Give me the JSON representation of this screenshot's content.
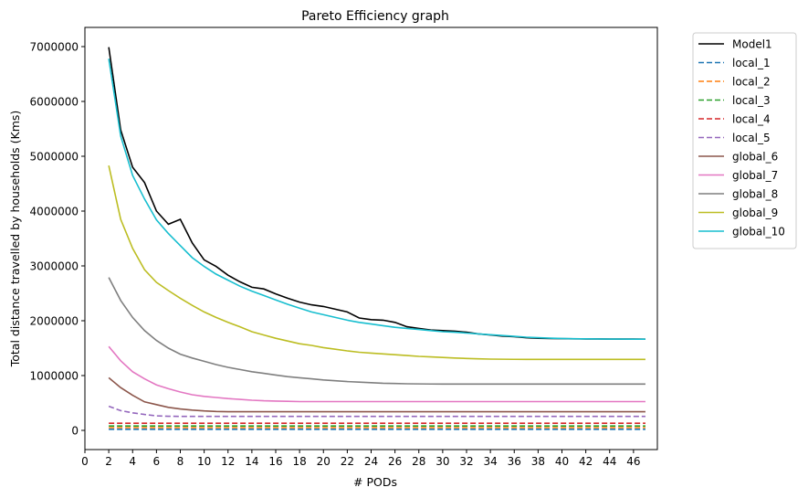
{
  "chart_data": {
    "type": "line",
    "title": "Pareto Efficiency graph",
    "xlabel": "# PODs",
    "ylabel": "Total distance travelled by households (Kms)",
    "xlim": [
      0,
      48
    ],
    "ylim": [
      -350000,
      7350000
    ],
    "xticks": [
      0,
      2,
      4,
      6,
      8,
      10,
      12,
      14,
      16,
      18,
      20,
      22,
      24,
      26,
      28,
      30,
      32,
      34,
      36,
      38,
      40,
      42,
      44,
      46
    ],
    "yticks": [
      0,
      1000000,
      2000000,
      3000000,
      4000000,
      5000000,
      6000000,
      7000000
    ],
    "x": [
      2,
      3,
      4,
      5,
      6,
      7,
      8,
      9,
      10,
      11,
      12,
      13,
      14,
      15,
      16,
      17,
      18,
      19,
      20,
      21,
      22,
      23,
      24,
      25,
      26,
      27,
      28,
      29,
      30,
      31,
      32,
      33,
      34,
      35,
      36,
      37,
      38,
      39,
      40,
      41,
      42,
      43,
      44,
      45,
      46,
      47
    ],
    "grid": false,
    "legend_position": "outside-right",
    "series": [
      {
        "name": "Model1",
        "color": "#000000",
        "dash": false,
        "values": [
          6990000,
          5480000,
          4800000,
          4520000,
          4000000,
          3760000,
          3850000,
          3420000,
          3110000,
          2990000,
          2830000,
          2710000,
          2610000,
          2580000,
          2490000,
          2410000,
          2340000,
          2290000,
          2260000,
          2210000,
          2160000,
          2050000,
          2020000,
          2010000,
          1970000,
          1890000,
          1860000,
          1830000,
          1820000,
          1810000,
          1790000,
          1760000,
          1740000,
          1720000,
          1710000,
          1690000,
          1680000,
          1675000,
          1673000,
          1670000,
          1668000,
          1667000,
          1666000,
          1665000,
          1665000,
          1664000
        ]
      },
      {
        "name": "local_1",
        "color": "#1f77b4",
        "dash": true,
        "values": [
          20000,
          20000,
          20000,
          20000,
          20000,
          20000,
          20000,
          20000,
          20000,
          20000,
          20000,
          20000,
          20000,
          20000,
          20000,
          20000,
          20000,
          20000,
          20000,
          20000,
          20000,
          20000,
          20000,
          20000,
          20000,
          20000,
          20000,
          20000,
          20000,
          20000,
          20000,
          20000,
          20000,
          20000,
          20000,
          20000,
          20000,
          20000,
          20000,
          20000,
          20000,
          20000,
          20000,
          20000,
          20000,
          20000
        ]
      },
      {
        "name": "local_2",
        "color": "#ff7f0e",
        "dash": true,
        "values": [
          50000,
          50000,
          50000,
          50000,
          50000,
          50000,
          50000,
          50000,
          50000,
          50000,
          50000,
          50000,
          50000,
          50000,
          50000,
          50000,
          50000,
          50000,
          50000,
          50000,
          50000,
          50000,
          50000,
          50000,
          50000,
          50000,
          50000,
          50000,
          50000,
          50000,
          50000,
          50000,
          50000,
          50000,
          50000,
          50000,
          50000,
          50000,
          50000,
          50000,
          50000,
          50000,
          50000,
          50000,
          50000,
          50000
        ]
      },
      {
        "name": "local_3",
        "color": "#2ca02c",
        "dash": true,
        "values": [
          80000,
          80000,
          80000,
          80000,
          80000,
          80000,
          80000,
          80000,
          80000,
          80000,
          80000,
          80000,
          80000,
          80000,
          80000,
          80000,
          80000,
          80000,
          80000,
          80000,
          80000,
          80000,
          80000,
          80000,
          80000,
          80000,
          80000,
          80000,
          80000,
          80000,
          80000,
          80000,
          80000,
          80000,
          80000,
          80000,
          80000,
          80000,
          80000,
          80000,
          80000,
          80000,
          80000,
          80000,
          80000,
          80000
        ]
      },
      {
        "name": "local_4",
        "color": "#d62728",
        "dash": true,
        "values": [
          130000,
          130000,
          130000,
          130000,
          130000,
          130000,
          130000,
          130000,
          130000,
          130000,
          130000,
          130000,
          130000,
          130000,
          130000,
          130000,
          130000,
          130000,
          130000,
          130000,
          130000,
          130000,
          130000,
          130000,
          130000,
          130000,
          130000,
          130000,
          130000,
          130000,
          130000,
          130000,
          130000,
          130000,
          130000,
          130000,
          130000,
          130000,
          130000,
          130000,
          130000,
          130000,
          130000,
          130000,
          130000,
          130000
        ]
      },
      {
        "name": "local_5",
        "color": "#9467bd",
        "dash": true,
        "values": [
          440000,
          360000,
          320000,
          290000,
          265000,
          258000,
          255000,
          255000,
          255000,
          255000,
          255000,
          255000,
          255000,
          255000,
          255000,
          255000,
          255000,
          255000,
          255000,
          255000,
          255000,
          255000,
          255000,
          255000,
          255000,
          255000,
          255000,
          255000,
          255000,
          255000,
          255000,
          255000,
          255000,
          255000,
          255000,
          255000,
          255000,
          255000,
          255000,
          255000,
          255000,
          255000,
          255000,
          255000,
          255000,
          255000
        ]
      },
      {
        "name": "global_6",
        "color": "#8c564b",
        "dash": false,
        "values": [
          960000,
          780000,
          640000,
          520000,
          470000,
          420000,
          390000,
          370000,
          355000,
          345000,
          340000,
          340000,
          340000,
          340000,
          340000,
          340000,
          340000,
          340000,
          340000,
          340000,
          340000,
          340000,
          340000,
          340000,
          340000,
          340000,
          340000,
          340000,
          340000,
          340000,
          340000,
          340000,
          340000,
          340000,
          340000,
          340000,
          340000,
          340000,
          340000,
          340000,
          340000,
          340000,
          340000,
          340000,
          340000,
          340000
        ]
      },
      {
        "name": "global_7",
        "color": "#e377c2",
        "dash": false,
        "values": [
          1530000,
          1270000,
          1070000,
          940000,
          830000,
          760000,
          700000,
          650000,
          620000,
          600000,
          580000,
          565000,
          550000,
          540000,
          535000,
          530000,
          525000,
          525000,
          525000,
          525000,
          525000,
          525000,
          525000,
          525000,
          525000,
          525000,
          525000,
          525000,
          525000,
          525000,
          525000,
          525000,
          525000,
          525000,
          525000,
          525000,
          525000,
          525000,
          525000,
          525000,
          525000,
          525000,
          525000,
          525000,
          525000,
          525000
        ]
      },
      {
        "name": "global_8",
        "color": "#7f7f7f",
        "dash": false,
        "values": [
          2790000,
          2370000,
          2060000,
          1820000,
          1640000,
          1500000,
          1390000,
          1320000,
          1260000,
          1200000,
          1150000,
          1110000,
          1070000,
          1040000,
          1010000,
          980000,
          960000,
          940000,
          920000,
          905000,
          890000,
          880000,
          870000,
          860000,
          855000,
          850000,
          848000,
          846000,
          845000,
          845000,
          845000,
          845000,
          845000,
          845000,
          845000,
          845000,
          845000,
          845000,
          845000,
          845000,
          845000,
          845000,
          845000,
          845000,
          845000,
          845000
        ]
      },
      {
        "name": "global_9",
        "color": "#bcbd22",
        "dash": false,
        "values": [
          4830000,
          3850000,
          3320000,
          2930000,
          2700000,
          2550000,
          2410000,
          2280000,
          2160000,
          2060000,
          1970000,
          1890000,
          1800000,
          1740000,
          1680000,
          1630000,
          1580000,
          1550000,
          1510000,
          1480000,
          1450000,
          1425000,
          1410000,
          1395000,
          1380000,
          1365000,
          1350000,
          1340000,
          1330000,
          1320000,
          1312000,
          1305000,
          1300000,
          1298000,
          1296000,
          1295000,
          1295000,
          1295000,
          1295000,
          1295000,
          1295000,
          1295000,
          1295000,
          1295000,
          1295000,
          1295000
        ]
      },
      {
        "name": "global_10",
        "color": "#17becf",
        "dash": false,
        "values": [
          6780000,
          5370000,
          4650000,
          4220000,
          3840000,
          3590000,
          3370000,
          3150000,
          2990000,
          2850000,
          2740000,
          2630000,
          2540000,
          2460000,
          2380000,
          2300000,
          2230000,
          2160000,
          2110000,
          2060000,
          2010000,
          1970000,
          1940000,
          1910000,
          1880000,
          1860000,
          1840000,
          1820000,
          1800000,
          1790000,
          1775000,
          1760000,
          1745000,
          1730000,
          1715000,
          1700000,
          1690000,
          1682000,
          1676000,
          1672000,
          1669000,
          1667000,
          1666000,
          1665000,
          1664000,
          1663000
        ]
      }
    ]
  }
}
